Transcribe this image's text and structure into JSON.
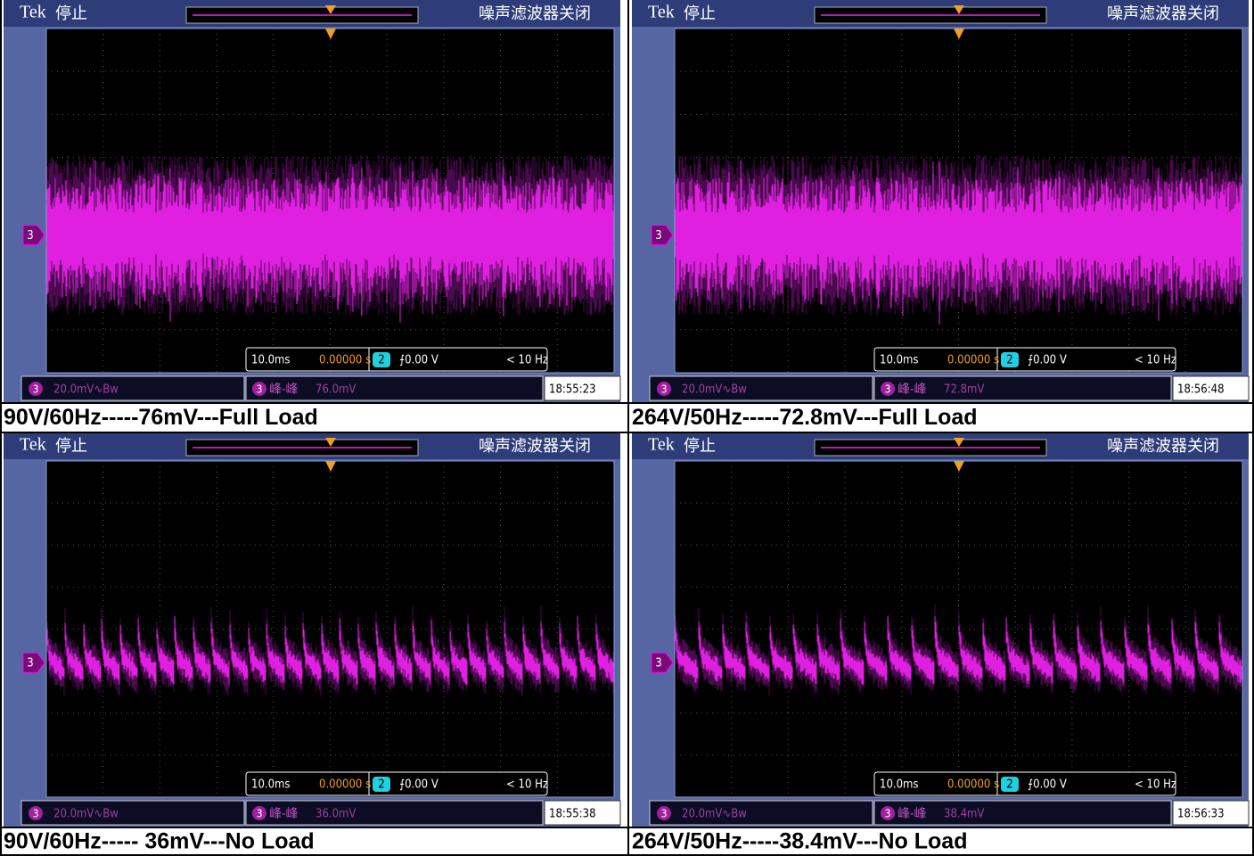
{
  "panels": [
    {
      "scope": {
        "brand": "Tek",
        "status": "停止",
        "filter": "噪声滤波器关闭",
        "channel": "3",
        "timebase": "10.0ms",
        "trigger_pos": "0.00000 s",
        "trigger_channel": "2",
        "trigger_level": "⨍0.00 V",
        "trigger_freq": "< 10 Hz",
        "ch_scale": "20.0mV∿Bw",
        "measurement": "峰-峰",
        "measured": "76.0mV",
        "time": "18:55:23"
      },
      "caption": "90V/60Hz-----76mV---Full Load"
    },
    {
      "scope": {
        "brand": "Tek",
        "status": "停止",
        "filter": "噪声滤波器关闭",
        "channel": "3",
        "timebase": "10.0ms",
        "trigger_pos": "0.00000 s",
        "trigger_channel": "2",
        "trigger_level": "⨍0.00 V",
        "trigger_freq": "< 10 Hz",
        "ch_scale": "20.0mV∿Bw",
        "measurement": "峰-峰",
        "measured": "72.8mV",
        "time": "18:56:48"
      },
      "caption": "264V/50Hz-----72.8mV---Full Load"
    },
    {
      "scope": {
        "brand": "Tek",
        "status": "停止",
        "filter": "噪声滤波器关闭",
        "channel": "3",
        "timebase": "10.0ms",
        "trigger_pos": "0.00000 s",
        "trigger_channel": "2",
        "trigger_level": "⨍0.00 V",
        "trigger_freq": "< 10 Hz",
        "ch_scale": "20.0mV∿Bw",
        "measurement": "峰-峰",
        "measured": "36.0mV",
        "time": "18:55:38"
      },
      "caption": "90V/60Hz----- 36mV---No Load"
    },
    {
      "scope": {
        "brand": "Tek",
        "status": "停止",
        "filter": "噪声滤波器关闭",
        "channel": "3",
        "timebase": "10.0ms",
        "trigger_pos": "0.00000 s",
        "trigger_channel": "2",
        "trigger_level": "⨍0.00 V",
        "trigger_freq": "< 10 Hz",
        "ch_scale": "20.0mV∿Bw",
        "measurement": "峰-峰",
        "measured": "38.4mV",
        "time": "18:56:33"
      },
      "caption": "264V/50Hz-----38.4mV---No Load"
    }
  ]
}
